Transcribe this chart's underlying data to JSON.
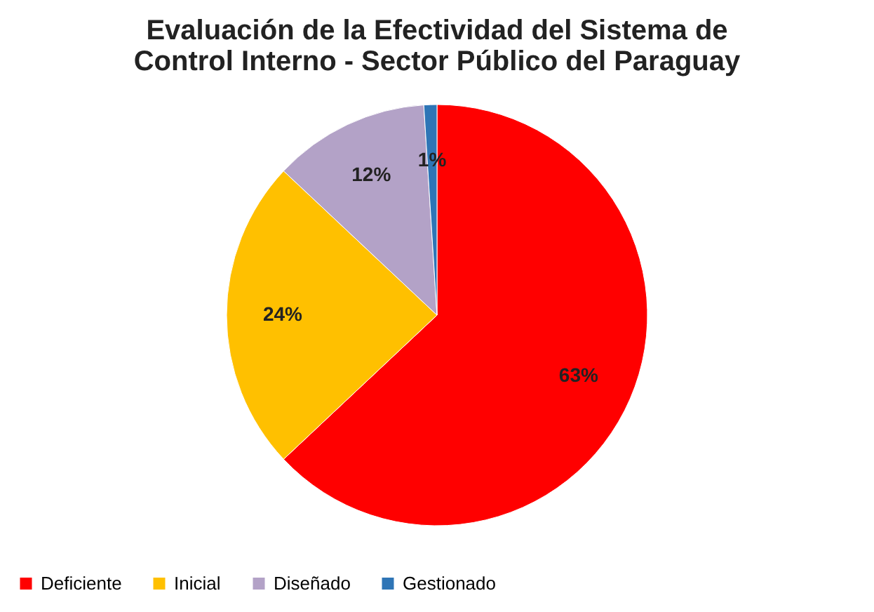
{
  "chart_data": {
    "type": "pie",
    "title": [
      "Evaluación de la Efectividad del Sistema de",
      "Control Interno - Sector Público del Paraguay"
    ],
    "categories": [
      "Deficiente",
      "Inicial",
      "Diseñado",
      "Gestionado"
    ],
    "values": [
      63,
      24,
      12,
      1
    ],
    "colors": [
      "#ff0000",
      "#ffc000",
      "#b3a2c7",
      "#2e75b6"
    ],
    "value_labels": [
      "63%",
      "24%",
      "12%",
      "1%"
    ],
    "legend": "bottom"
  }
}
